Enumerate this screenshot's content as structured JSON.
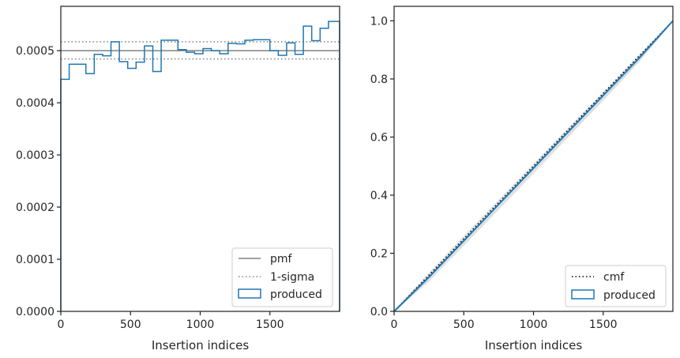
{
  "chart_data": [
    {
      "type": "line",
      "title": "",
      "xlabel": "Insertion indices",
      "ylabel": "",
      "xlim": [
        0,
        2000
      ],
      "ylim": [
        0,
        0.000585
      ],
      "xticks": [
        0,
        500,
        1000,
        1500
      ],
      "xtick_labels": [
        "0",
        "500",
        "1000",
        "1500"
      ],
      "yticks": [
        0,
        0.0001,
        0.0002,
        0.0003,
        0.0004,
        0.0005
      ],
      "ytick_labels": [
        "0.0000",
        "0.0001",
        "0.0002",
        "0.0003",
        "0.0004",
        "0.0005"
      ],
      "grid": false,
      "legend_position": "lower right",
      "pmf": 0.0005,
      "sigma_band": [
        0.000484,
        0.000517
      ],
      "bin_edges": [
        0,
        60,
        180,
        240,
        300,
        360,
        420,
        480,
        540,
        600,
        660,
        720,
        840,
        900,
        960,
        1020,
        1080,
        1140,
        1200,
        1260,
        1320,
        1380,
        1500,
        1560,
        1620,
        1680,
        1740,
        1800,
        1860,
        1920,
        2000
      ],
      "produced": [
        0.000445,
        0.000474,
        0.000456,
        0.000493,
        0.00049,
        0.000517,
        0.000479,
        0.000466,
        0.000478,
        0.000509,
        0.00046,
        0.00052,
        0.000502,
        0.000497,
        0.000494,
        0.000504,
        0.0005,
        0.000494,
        0.000514,
        0.000513,
        0.00052,
        0.000521,
        0.0005,
        0.000491,
        0.000515,
        0.000493,
        0.000547,
        0.000519,
        0.000543,
        0.000556
      ],
      "legend": [
        "pmf",
        "1-sigma",
        "produced"
      ],
      "colors": {
        "pmf": "#808080",
        "sigma": "#808080",
        "produced": "#1f77b4"
      }
    },
    {
      "type": "line",
      "title": "",
      "xlabel": "Insertion indices",
      "ylabel": "",
      "xlim": [
        0,
        2000
      ],
      "ylim": [
        0,
        1.05
      ],
      "xticks": [
        0,
        500,
        1000,
        1500
      ],
      "xtick_labels": [
        "0",
        "500",
        "1000",
        "1500"
      ],
      "yticks": [
        0,
        0.2,
        0.4,
        0.6,
        0.8,
        1.0
      ],
      "ytick_labels": [
        "0.0",
        "0.2",
        "0.4",
        "0.6",
        "0.8",
        "1.0"
      ],
      "grid": false,
      "legend_position": "lower right",
      "cmf_x": [
        0,
        2000
      ],
      "cmf_y": [
        0,
        1
      ],
      "x": [
        0,
        250,
        500,
        750,
        1000,
        1250,
        1500,
        1750,
        2000
      ],
      "produced_y": [
        0,
        0.118,
        0.243,
        0.368,
        0.493,
        0.618,
        0.743,
        0.868,
        1.0
      ],
      "reference_curves": [
        [
          0,
          0.13,
          0.258,
          0.382,
          0.506,
          0.63,
          0.752,
          0.876,
          1.0
        ],
        [
          0,
          0.108,
          0.228,
          0.352,
          0.476,
          0.602,
          0.728,
          0.856,
          1.0
        ],
        [
          0,
          0.125,
          0.252,
          0.376,
          0.5,
          0.626,
          0.75,
          0.874,
          1.0
        ],
        [
          0,
          0.112,
          0.236,
          0.36,
          0.485,
          0.61,
          0.736,
          0.862,
          1.0
        ],
        [
          0,
          0.12,
          0.248,
          0.37,
          0.497,
          0.622,
          0.746,
          0.872,
          1.0
        ],
        [
          0,
          0.105,
          0.232,
          0.356,
          0.482,
          0.606,
          0.732,
          0.86,
          1.0
        ]
      ],
      "legend": [
        "cmf",
        "produced"
      ],
      "colors": {
        "cmf": "#000000",
        "produced": "#1f77b4",
        "reference": "#d3d3d3"
      }
    }
  ]
}
